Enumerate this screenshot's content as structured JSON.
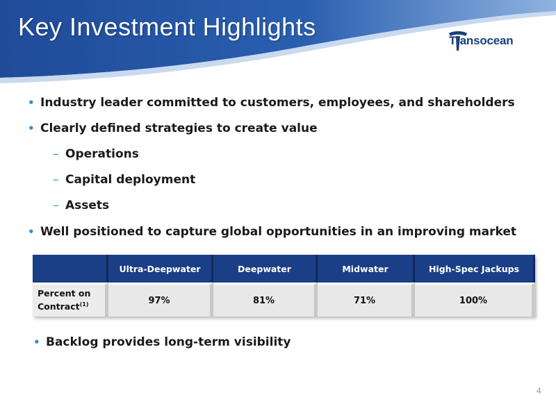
{
  "slide": {
    "title": "Key Investment Highlights",
    "logo_text": "Transocean",
    "page_number": "4"
  },
  "bullets": [
    {
      "text": "Industry leader committed to customers, employees, and shareholders"
    },
    {
      "text": "Clearly defined strategies to create value"
    },
    {
      "text": "Operations"
    },
    {
      "text": "Capital deployment"
    },
    {
      "text": "Assets"
    },
    {
      "text": "Well positioned to capture global opportunities in an improving market"
    }
  ],
  "table": {
    "headers": [
      "",
      "Ultra-Deepwater",
      "Deepwater",
      "Midwater",
      "High-Spec Jackups"
    ],
    "row_label_line1": "Percent on",
    "row_label_line2": "Contract",
    "row_label_sup": "(1)",
    "values": [
      "97%",
      "81%",
      "71%",
      "100%"
    ]
  },
  "backlog": "Backlog provides long-term visibility",
  "colors": {
    "header_blue": "#1b3f86",
    "bullet_blue": "#2f8fd6",
    "logo_blue": "#1a3f7a"
  }
}
